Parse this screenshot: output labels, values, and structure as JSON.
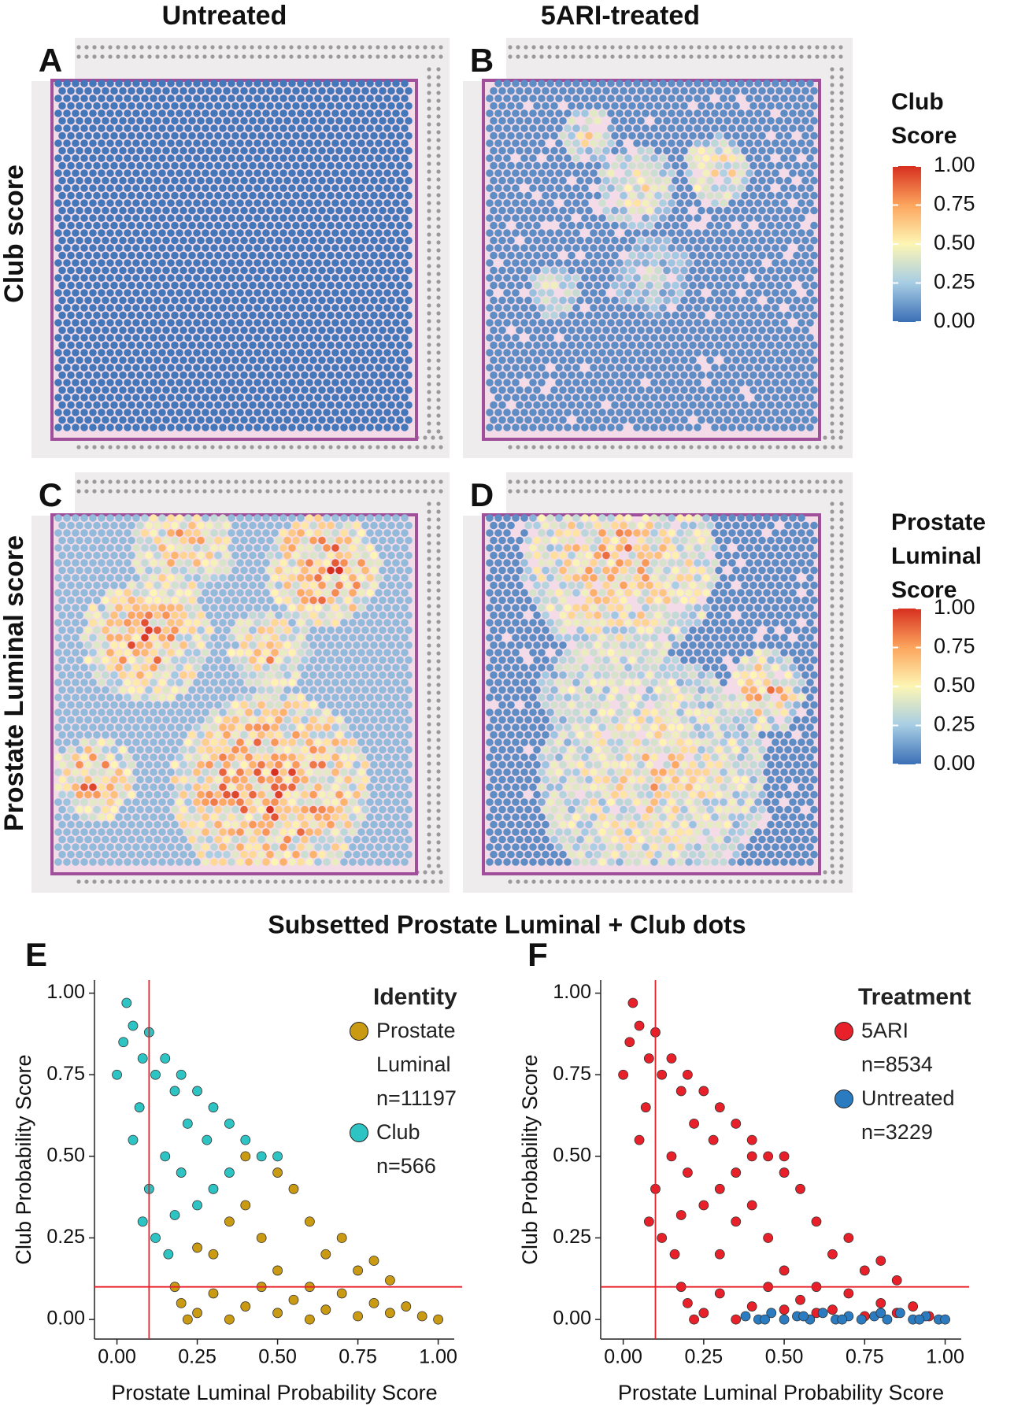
{
  "header": {
    "columns": [
      "Untreated",
      "5ARI-treated"
    ],
    "rows": [
      "Club score",
      "Prostate Luminal score"
    ]
  },
  "panels": [
    {
      "letter": "A"
    },
    {
      "letter": "B"
    },
    {
      "letter": "C"
    },
    {
      "letter": "D"
    }
  ],
  "colorbars": [
    {
      "title": [
        "Club",
        "Score"
      ],
      "ticks": [
        {
          "value": 0,
          "label": "0.00"
        },
        {
          "value": 0.25,
          "label": "0.25"
        },
        {
          "value": 0.5,
          "label": "0.50"
        },
        {
          "value": 0.75,
          "label": "0.75"
        },
        {
          "value": 1,
          "label": "1.00"
        }
      ],
      "lim": [
        0,
        1
      ]
    },
    {
      "title": [
        "Prostate",
        "Luminal",
        "Score"
      ],
      "ticks": [
        {
          "value": 0,
          "label": "0.00"
        },
        {
          "value": 0.25,
          "label": "0.25"
        },
        {
          "value": 0.5,
          "label": "0.50"
        },
        {
          "value": 0.75,
          "label": "0.75"
        },
        {
          "value": 1,
          "label": "1.00"
        }
      ],
      "lim": [
        0,
        1
      ]
    }
  ],
  "subtitle": "Subsetted Prostate Luminal + Club dots",
  "chart_data": [
    {
      "type": "scatter",
      "letter": "E",
      "x_label": "Prostate Luminal Probability Score",
      "y_label": "Club Probability Score",
      "legend_title": "Identity",
      "xlim": [
        -0.07,
        1.05
      ],
      "ylim": [
        -0.06,
        1.04
      ],
      "xticks": [
        {
          "value": 0,
          "label": "0.00"
        },
        {
          "value": 0.25,
          "label": "0.25"
        },
        {
          "value": 0.5,
          "label": "0.50"
        },
        {
          "value": 0.75,
          "label": "0.75"
        },
        {
          "value": 1,
          "label": "1.00"
        }
      ],
      "yticks": [
        {
          "value": 0,
          "label": "0.00"
        },
        {
          "value": 0.25,
          "label": "0.25"
        },
        {
          "value": 0.5,
          "label": "0.50"
        },
        {
          "value": 0.75,
          "label": "0.75"
        },
        {
          "value": 1,
          "label": "1.00"
        }
      ],
      "vlines": [
        0.1
      ],
      "hlines": [
        0.1
      ],
      "line_color": "#e8202a",
      "series": [
        {
          "name": "Prostate Luminal",
          "n_label": "n=11197",
          "color": "#c99a12",
          "x": [
            0.2,
            0.25,
            0.3,
            0.35,
            0.4,
            0.45,
            0.5,
            0.55,
            0.6,
            0.65,
            0.7,
            0.75,
            0.8,
            0.85,
            0.9,
            0.95,
            1.0,
            0.3,
            0.35,
            0.4,
            0.45,
            0.5,
            0.55,
            0.6,
            0.65,
            0.7,
            0.75,
            0.8,
            0.85,
            0.5,
            0.6,
            0.25,
            0.4,
            0.18,
            0.22
          ],
          "values": [
            0.05,
            0.02,
            0.08,
            0.0,
            0.04,
            0.1,
            0.02,
            0.06,
            0.0,
            0.03,
            0.08,
            0.01,
            0.05,
            0.02,
            0.04,
            0.01,
            0.0,
            0.2,
            0.3,
            0.35,
            0.25,
            0.45,
            0.4,
            0.3,
            0.2,
            0.25,
            0.15,
            0.18,
            0.12,
            0.15,
            0.1,
            0.22,
            0.5,
            0.1,
            0.0
          ]
        },
        {
          "name": "Club",
          "n_label": "n=566",
          "color": "#2ec4c4",
          "x": [
            0.03,
            0.05,
            0.02,
            0.08,
            0.1,
            0.12,
            0.15,
            0.18,
            0.2,
            0.22,
            0.25,
            0.28,
            0.3,
            0.35,
            0.4,
            0.45,
            0.5,
            0.2,
            0.15,
            0.1,
            0.08,
            0.12,
            0.18,
            0.25,
            0.3,
            0.05,
            0.0,
            0.07,
            0.35,
            0.16
          ],
          "values": [
            0.97,
            0.9,
            0.85,
            0.8,
            0.88,
            0.75,
            0.8,
            0.7,
            0.75,
            0.6,
            0.7,
            0.55,
            0.65,
            0.6,
            0.55,
            0.5,
            0.5,
            0.45,
            0.5,
            0.4,
            0.3,
            0.25,
            0.32,
            0.35,
            0.4,
            0.55,
            0.75,
            0.65,
            0.45,
            0.2
          ]
        }
      ]
    },
    {
      "type": "scatter",
      "letter": "F",
      "x_label": "Prostate Luminal Probability Score",
      "y_label": "Club Probability Score",
      "legend_title": "Treatment",
      "xlim": [
        -0.07,
        1.05
      ],
      "ylim": [
        -0.06,
        1.04
      ],
      "xticks": [
        {
          "value": 0,
          "label": "0.00"
        },
        {
          "value": 0.25,
          "label": "0.25"
        },
        {
          "value": 0.5,
          "label": "0.50"
        },
        {
          "value": 0.75,
          "label": "0.75"
        },
        {
          "value": 1,
          "label": "1.00"
        }
      ],
      "yticks": [
        {
          "value": 0,
          "label": "0.00"
        },
        {
          "value": 0.25,
          "label": "0.25"
        },
        {
          "value": 0.5,
          "label": "0.50"
        },
        {
          "value": 0.75,
          "label": "0.75"
        },
        {
          "value": 1,
          "label": "1.00"
        }
      ],
      "vlines": [
        0.1
      ],
      "hlines": [
        0.1
      ],
      "line_color": "#e8202a",
      "series": [
        {
          "name": "5ARI",
          "n_label": "n=8534",
          "color": "#e8202a",
          "x": [
            0.03,
            0.05,
            0.02,
            0.08,
            0.1,
            0.12,
            0.15,
            0.18,
            0.2,
            0.22,
            0.25,
            0.28,
            0.3,
            0.35,
            0.4,
            0.45,
            0.5,
            0.2,
            0.15,
            0.1,
            0.08,
            0.12,
            0.18,
            0.25,
            0.3,
            0.05,
            0.0,
            0.07,
            0.35,
            0.16,
            0.2,
            0.25,
            0.3,
            0.35,
            0.4,
            0.45,
            0.5,
            0.55,
            0.6,
            0.65,
            0.7,
            0.75,
            0.8,
            0.85,
            0.9,
            0.95,
            0.3,
            0.35,
            0.4,
            0.45,
            0.5,
            0.55,
            0.6,
            0.65,
            0.7,
            0.75,
            0.8,
            0.85,
            0.5,
            0.6,
            0.4,
            0.18,
            0.22
          ],
          "values": [
            0.97,
            0.9,
            0.85,
            0.8,
            0.88,
            0.75,
            0.8,
            0.7,
            0.75,
            0.6,
            0.7,
            0.55,
            0.65,
            0.6,
            0.55,
            0.5,
            0.5,
            0.45,
            0.5,
            0.4,
            0.3,
            0.25,
            0.32,
            0.35,
            0.4,
            0.55,
            0.75,
            0.65,
            0.45,
            0.2,
            0.05,
            0.02,
            0.08,
            0.0,
            0.04,
            0.1,
            0.03,
            0.06,
            0.02,
            0.03,
            0.08,
            0.01,
            0.05,
            0.02,
            0.04,
            0.01,
            0.2,
            0.3,
            0.35,
            0.25,
            0.45,
            0.4,
            0.3,
            0.2,
            0.25,
            0.15,
            0.18,
            0.12,
            0.15,
            0.1,
            0.5,
            0.1,
            0.0
          ]
        },
        {
          "name": "Untreated",
          "n_label": "n=3229",
          "color": "#2b7bc0",
          "x": [
            0.38,
            0.42,
            0.46,
            0.5,
            0.54,
            0.58,
            0.62,
            0.66,
            0.7,
            0.74,
            0.78,
            0.82,
            0.86,
            0.9,
            0.94,
            0.98,
            1.0,
            0.44,
            0.56,
            0.68,
            0.8,
            0.92
          ],
          "values": [
            0.01,
            0.0,
            0.02,
            0.0,
            0.01,
            0.0,
            0.02,
            0.0,
            0.01,
            0.0,
            0.01,
            0.0,
            0.02,
            0.0,
            0.01,
            0.0,
            0.0,
            0.0,
            0.01,
            0.0,
            0.02,
            0.0
          ]
        }
      ]
    }
  ]
}
